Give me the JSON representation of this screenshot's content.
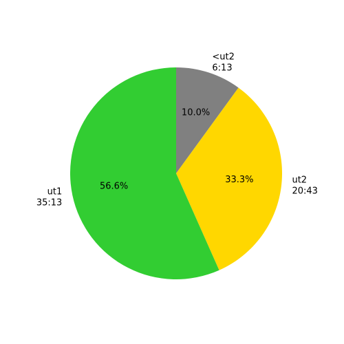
{
  "chart_data": {
    "type": "pie",
    "labels": [
      "<ut2",
      "ut2",
      "ut1"
    ],
    "durations": [
      "6:13",
      "20:43",
      "35:13"
    ],
    "values": [
      10.0,
      33.3,
      56.6
    ],
    "value_labels": [
      "10.0%",
      "33.3%",
      "56.6%"
    ],
    "colors": [
      "#808080",
      "#ffd700",
      "#32cd32"
    ]
  }
}
